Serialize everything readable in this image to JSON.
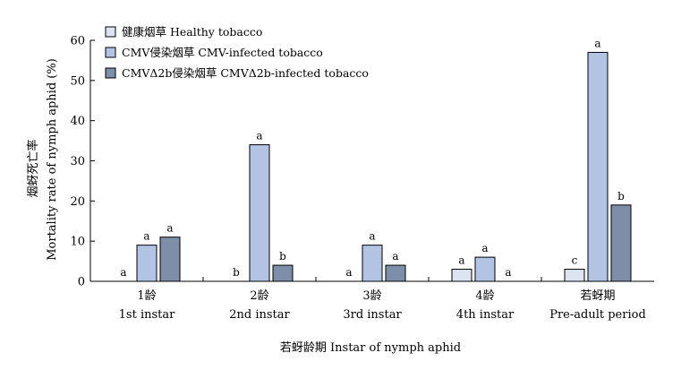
{
  "chart_data": {
    "type": "bar",
    "ylabel_cn": "烟蚜死亡率",
    "ylabel_en": "Mortality rate of nymph aphid (%)",
    "xlabel": "若蚜龄期 Instar of nymph aphid",
    "ylim": [
      0,
      60
    ],
    "yticks": [
      0,
      10,
      20,
      30,
      40,
      50,
      60
    ],
    "categories": [
      {
        "cn": "1龄",
        "en": "1st instar"
      },
      {
        "cn": "2龄",
        "en": "2nd instar"
      },
      {
        "cn": "3龄",
        "en": "3rd instar"
      },
      {
        "cn": "4龄",
        "en": "4th instar"
      },
      {
        "cn": "若蚜期",
        "en": "Pre-adult period"
      }
    ],
    "series": [
      {
        "name": "健康烟草 Healthy tobacco",
        "color": "#dde3f0",
        "values": [
          0,
          0,
          0,
          3,
          3
        ],
        "labels": [
          "a",
          "b",
          "a",
          "a",
          "c"
        ]
      },
      {
        "name": "CMV侵染烟草 CMV-infected tobacco",
        "color": "#b3c3e3",
        "values": [
          9,
          34,
          9,
          6,
          57
        ],
        "labels": [
          "a",
          "a",
          "a",
          "a",
          "a"
        ]
      },
      {
        "name": "CMVΔ2b侵染烟草 CMVΔ2b-infected tobacco",
        "color": "#7f8ea8",
        "values": [
          11,
          4,
          4,
          0,
          19
        ],
        "labels": [
          "a",
          "b",
          "a",
          "a",
          "b"
        ]
      }
    ],
    "legend_position": "top-left",
    "grid": false
  }
}
